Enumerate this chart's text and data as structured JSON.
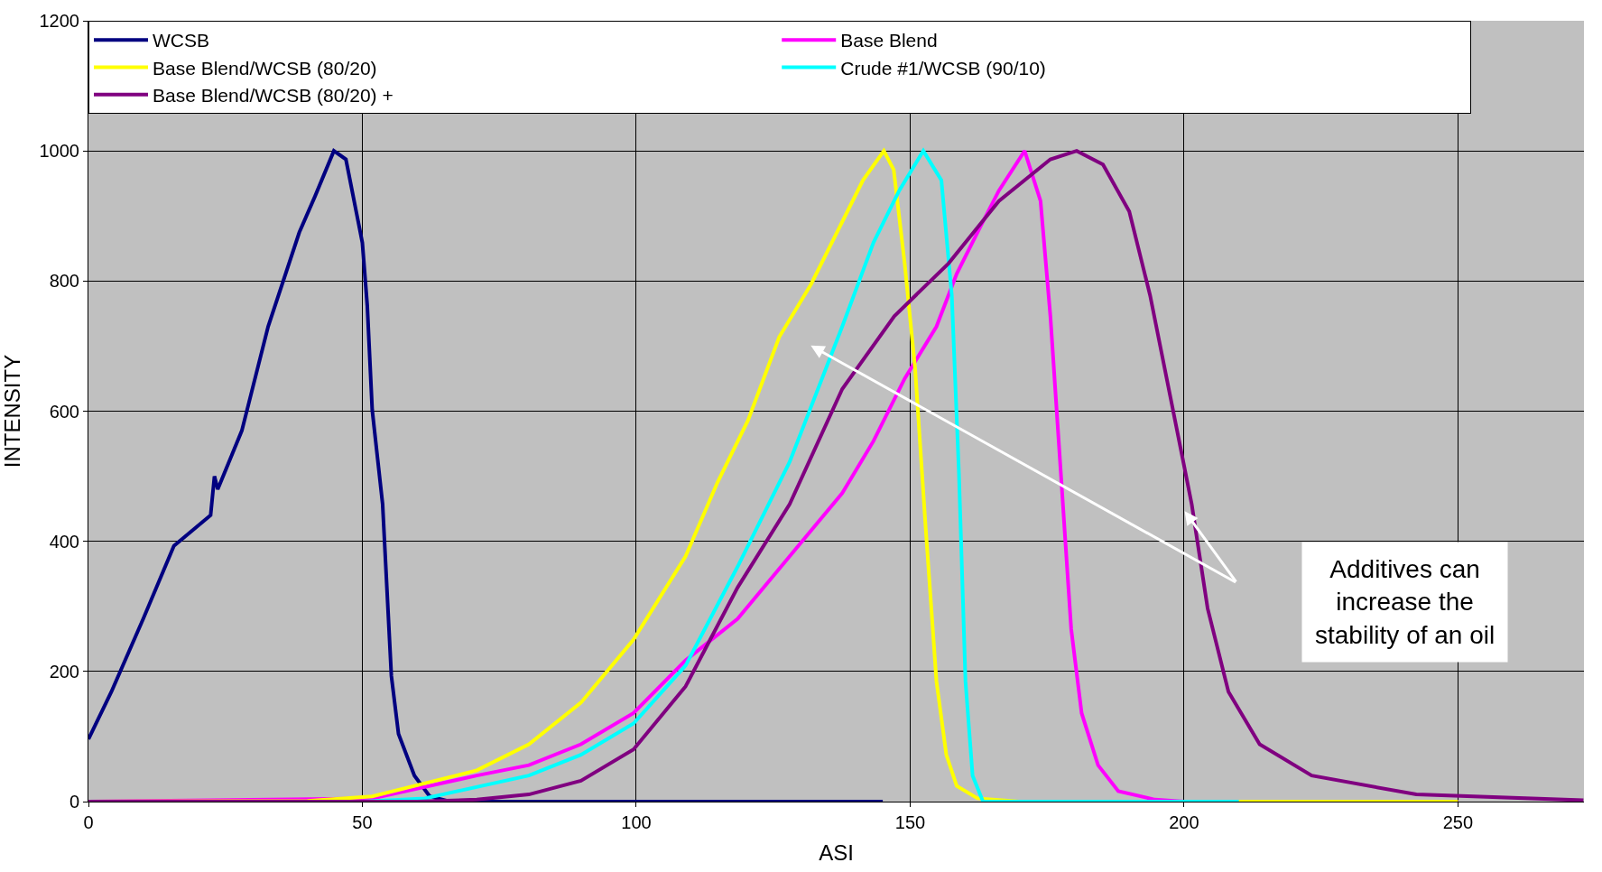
{
  "chart_data": {
    "type": "line",
    "xlabel": "ASI",
    "ylabel": "INTENSITY",
    "xlim": [
      0,
      273
    ],
    "xticks": [
      0,
      50,
      100,
      150,
      200,
      250
    ],
    "ylim": [
      0,
      1200
    ],
    "yticks": [
      0,
      200,
      400,
      600,
      800,
      1000,
      1200
    ],
    "grid": true,
    "legend": "top",
    "marker": "none",
    "line_style": "solid",
    "annotations": [
      "Additives can\nincrease the\nstability of an oil"
    ],
    "series": [
      {
        "name": "WCSB",
        "color": "#000080",
        "x": [
          0,
          4.2,
          10,
          15.6,
          22.3,
          23,
          23.6,
          28,
          32.8,
          38.5,
          41.4,
          44.8,
          47,
          50,
          50.9,
          51.8,
          53.7,
          55.3,
          56.6,
          59.5,
          62.3,
          66,
          100,
          145
        ],
        "values": [
          96,
          169,
          281,
          393,
          440,
          500,
          480,
          570,
          730,
          875,
          931,
          1000,
          987,
          859,
          762,
          602,
          457,
          193,
          104,
          40,
          8,
          0,
          0,
          0
        ]
      },
      {
        "name": "Base Blend",
        "color": "#ff00ff",
        "x": [
          0,
          51.8,
          70.9,
          80.4,
          89.9,
          99.5,
          109,
          118.5,
          128,
          137.6,
          143.3,
          149,
          154.8,
          158.5,
          162.3,
          166.2,
          170.9,
          173.8,
          175.6,
          177.5,
          179.4,
          181.3,
          184.3,
          188,
          194.7,
          200,
          250
        ],
        "values": [
          0,
          5,
          40,
          56,
          88,
          136,
          217,
          281,
          377,
          474,
          554,
          650,
          730,
          811,
          875,
          939,
          1000,
          923,
          746,
          506,
          265,
          136,
          56,
          16,
          3,
          0,
          0
        ]
      },
      {
        "name": "Base Blend/WCSB (80/20)",
        "color": "#ffff00",
        "x": [
          0,
          40,
          51.8,
          70.9,
          80.4,
          89.9,
          99.5,
          109,
          114.8,
          120.4,
          126.1,
          131.9,
          137.6,
          141.4,
          145.2,
          147,
          149,
          150.9,
          152.8,
          154.8,
          156.6,
          158.5,
          162.3,
          170,
          250
        ],
        "values": [
          0,
          1,
          8,
          48,
          88,
          152,
          249,
          377,
          490,
          586,
          714,
          795,
          891,
          955,
          1000,
          971,
          827,
          666,
          425,
          185,
          72,
          24,
          5,
          0,
          0
        ]
      },
      {
        "name": "Crude #1/WCSB (90/10)",
        "color": "#00ffff",
        "x": [
          0,
          50,
          61.4,
          80.4,
          89.9,
          99.5,
          109,
          118.5,
          128,
          137.6,
          143.3,
          148,
          152.4,
          155.7,
          157.6,
          158.9,
          160.1,
          161.4,
          163.3,
          210
        ],
        "values": [
          0,
          0,
          5,
          40,
          72,
          120,
          209,
          361,
          522,
          730,
          859,
          939,
          1000,
          955,
          778,
          506,
          185,
          40,
          0,
          0
        ]
      },
      {
        "name": "Base Blend/WCSB (80/20) +",
        "color": "#800080",
        "x": [
          0,
          60,
          70.9,
          80.4,
          89.9,
          99.5,
          109,
          118.5,
          128,
          137.6,
          147.1,
          157,
          166.2,
          175.6,
          180.4,
          185.2,
          190,
          193.8,
          197.6,
          201.4,
          204.3,
          208.1,
          213.8,
          223.3,
          242.4,
          272.9
        ],
        "values": [
          0,
          0,
          3,
          11,
          32,
          80,
          177,
          329,
          457,
          634,
          746,
          827,
          923,
          987,
          1000,
          979,
          907,
          778,
          618,
          457,
          297,
          169,
          88,
          40,
          11,
          2
        ]
      }
    ]
  }
}
